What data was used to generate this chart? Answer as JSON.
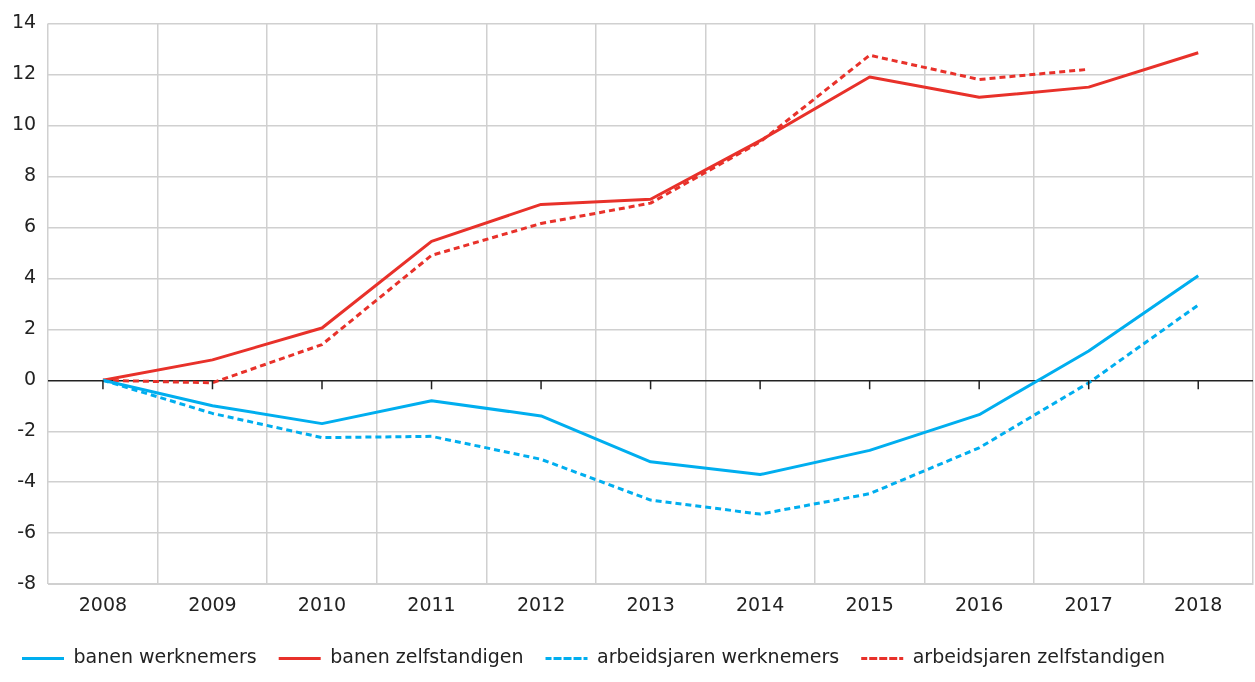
{
  "chart_data": {
    "type": "line",
    "categories": [
      "2008",
      "2009",
      "2010",
      "2011",
      "2012",
      "2013",
      "2014",
      "2015",
      "2016",
      "2017",
      "2018"
    ],
    "ylim": [
      -8,
      14
    ],
    "yticks": [
      -8,
      -6,
      -4,
      -2,
      0,
      2,
      4,
      6,
      8,
      10,
      12,
      14
    ],
    "grid": true,
    "legend": "bottom",
    "marker": "none",
    "series": [
      {
        "name": "banen werknemers",
        "color": "#00aeef",
        "line_style": "solid",
        "values": [
          0,
          -1.0,
          -1.7,
          -0.8,
          -1.4,
          -3.2,
          -3.7,
          -2.75,
          -1.35,
          1.15,
          4.1
        ]
      },
      {
        "name": "banen zelfstandigen",
        "color": "#e8312a",
        "line_style": "solid",
        "values": [
          0,
          0.8,
          2.05,
          5.45,
          6.9,
          7.1,
          9.4,
          11.9,
          11.1,
          11.5,
          12.85
        ]
      },
      {
        "name": "arbeidsjaren werknemers",
        "color": "#00aeef",
        "line_style": "dashed",
        "values": [
          0,
          -1.3,
          -2.25,
          -2.2,
          -3.1,
          -4.7,
          -5.25,
          -4.45,
          -2.65,
          -0.1,
          2.95
        ]
      },
      {
        "name": "arbeidsjaren zelfstandigen",
        "color": "#e8312a",
        "line_style": "dashed",
        "values": [
          0,
          -0.1,
          1.4,
          4.9,
          6.15,
          6.95,
          9.35,
          12.75,
          11.8,
          12.2,
          null
        ]
      }
    ]
  }
}
